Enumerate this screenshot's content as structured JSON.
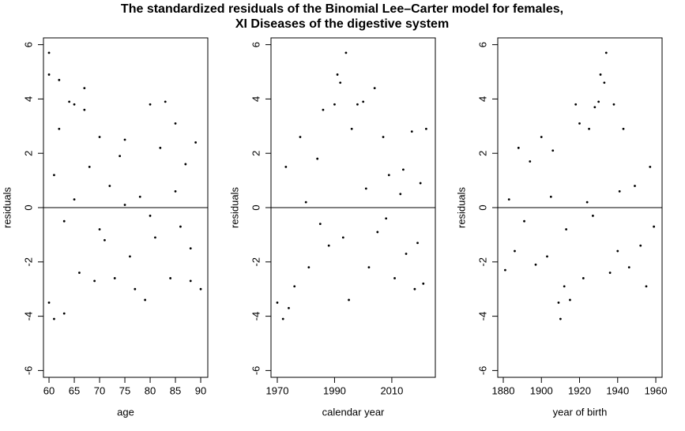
{
  "title": [
    "The standardized residuals of the Binomial Lee–Carter model for females,",
    "XI Diseases of the digestive system"
  ],
  "chart_data": [
    {
      "type": "scatter",
      "xlabel": "age",
      "ylabel": "residuals",
      "hline": 0,
      "color": "#000000",
      "xlim": [
        58.9,
        91.4
      ],
      "ylim": [
        -6.25,
        6.25
      ],
      "xticks": [
        60,
        65,
        70,
        75,
        80,
        85,
        90
      ],
      "yticks": [
        -6,
        -4,
        -2,
        0,
        2,
        4,
        6
      ],
      "x": [
        60,
        60,
        60,
        61,
        62,
        62,
        63,
        64,
        65,
        66,
        67,
        67,
        68,
        69,
        70,
        71,
        72,
        73,
        74,
        75,
        76,
        77,
        78,
        79,
        80,
        81,
        82,
        83,
        84,
        85,
        86,
        87,
        88,
        89,
        90,
        61,
        63,
        65,
        70,
        75,
        80,
        85,
        88
      ],
      "values": [
        5.7,
        4.9,
        -3.5,
        -4.1,
        4.7,
        2.9,
        -3.9,
        3.9,
        3.8,
        -2.4,
        4.4,
        3.6,
        1.5,
        -2.7,
        2.6,
        -1.2,
        0.8,
        -2.6,
        1.9,
        2.5,
        -1.8,
        -3.0,
        0.4,
        -3.4,
        3.8,
        -1.1,
        2.2,
        3.9,
        -2.6,
        3.1,
        -0.7,
        1.6,
        -2.7,
        2.4,
        -3.0,
        1.2,
        -0.5,
        0.3,
        -0.8,
        0.1,
        -0.3,
        0.6,
        -1.5
      ]
    },
    {
      "type": "scatter",
      "xlabel": "calendar year",
      "ylabel": "residuals",
      "hline": 0,
      "color": "#000000",
      "xlim": [
        1967.8,
        2025.2
      ],
      "ylim": [
        -6.25,
        6.25
      ],
      "xticks": [
        1970,
        1990,
        2010
      ],
      "yticks": [
        -6,
        -4,
        -2,
        0,
        2,
        4,
        6
      ],
      "x": [
        1970,
        1972,
        1974,
        1976,
        1978,
        1981,
        1984,
        1986,
        1988,
        1990,
        1991,
        1992,
        1994,
        1995,
        1996,
        1998,
        2000,
        2002,
        2004,
        2005,
        2007,
        2009,
        2011,
        2013,
        2015,
        2017,
        2018,
        2020,
        2021,
        2022,
        1973,
        1980,
        1985,
        1993,
        2001,
        2008,
        2014,
        2019
      ],
      "values": [
        -3.5,
        -4.1,
        -3.7,
        -2.9,
        2.6,
        -2.2,
        1.8,
        3.6,
        -1.4,
        3.8,
        4.9,
        4.6,
        5.7,
        -3.4,
        2.9,
        3.8,
        3.9,
        -2.2,
        4.4,
        -0.9,
        2.6,
        1.2,
        -2.6,
        0.5,
        -1.7,
        2.8,
        -3.0,
        0.9,
        -2.8,
        2.9,
        1.5,
        0.2,
        -0.6,
        -1.1,
        0.7,
        -0.4,
        1.4,
        -1.3
      ]
    },
    {
      "type": "scatter",
      "xlabel": "year of birth",
      "ylabel": "residuals",
      "hline": 0,
      "color": "#000000",
      "xlim": [
        1877.1,
        1963.3
      ],
      "ylim": [
        -6.25,
        6.25
      ],
      "xticks": [
        1880,
        1900,
        1920,
        1940,
        1960
      ],
      "yticks": [
        -6,
        -4,
        -2,
        0,
        2,
        4,
        6
      ],
      "x": [
        1881,
        1883,
        1886,
        1888,
        1891,
        1894,
        1897,
        1900,
        1903,
        1906,
        1909,
        1910,
        1912,
        1915,
        1918,
        1920,
        1922,
        1925,
        1928,
        1930,
        1931,
        1933,
        1934,
        1936,
        1938,
        1940,
        1943,
        1946,
        1949,
        1952,
        1955,
        1957,
        1959,
        1905,
        1913,
        1924,
        1941,
        1927
      ],
      "values": [
        -2.3,
        0.3,
        -1.6,
        2.2,
        -0.5,
        1.7,
        -2.1,
        2.6,
        -1.8,
        2.1,
        -3.5,
        -4.1,
        -2.9,
        -3.4,
        3.8,
        3.1,
        -2.6,
        2.9,
        3.7,
        3.9,
        4.9,
        4.6,
        5.7,
        -2.4,
        3.8,
        -1.6,
        2.9,
        -2.2,
        0.8,
        -1.4,
        -2.9,
        1.5,
        -0.7,
        0.4,
        -0.8,
        0.2,
        0.6,
        -0.3
      ]
    }
  ]
}
